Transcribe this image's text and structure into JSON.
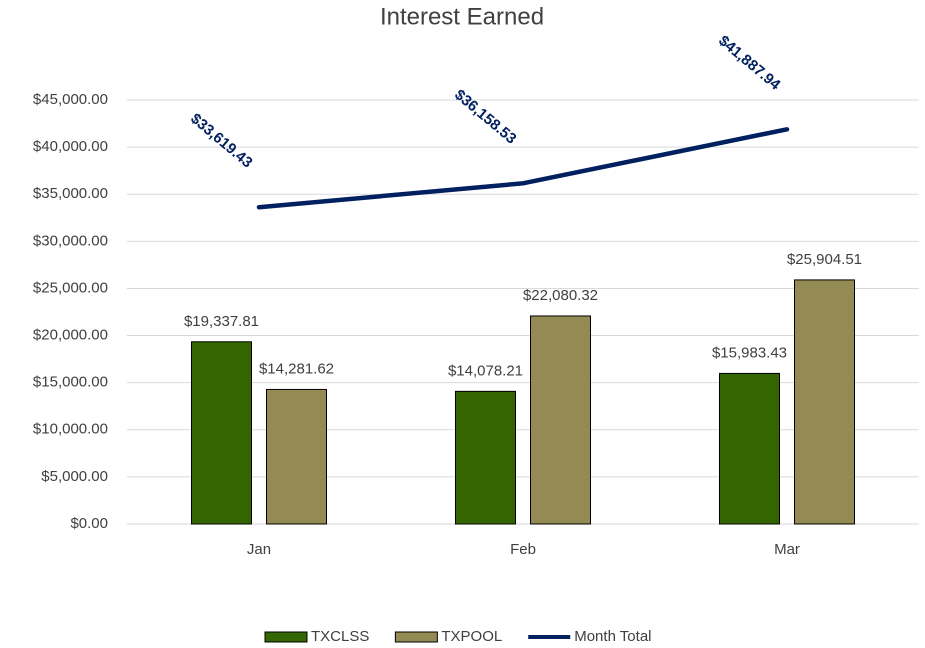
{
  "chart_data": {
    "type": "bar",
    "title": "Interest Earned",
    "categories": [
      "Jan",
      "Feb",
      "Mar"
    ],
    "series": [
      {
        "name": "TXCLSS",
        "type": "bar",
        "color": "#336600",
        "values": [
          19337.81,
          14078.21,
          15983.43
        ],
        "value_labels": [
          "$19,337.81",
          "$14,078.21",
          "$15,983.43"
        ]
      },
      {
        "name": "TXPOOL",
        "type": "bar",
        "color": "#948a54",
        "values": [
          14281.62,
          22080.32,
          25904.51
        ],
        "value_labels": [
          "$14,281.62",
          "$22,080.32",
          "$25,904.51"
        ]
      },
      {
        "name": "Month Total",
        "type": "line",
        "color": "#002060",
        "values": [
          33619.43,
          36158.53,
          41887.94
        ],
        "value_labels": [
          "$33,619.43",
          "$36,158.53",
          "$41,887.94"
        ]
      }
    ],
    "ylim": [
      0,
      45000
    ],
    "yticks": [
      {
        "value": 0,
        "label": "$0.00"
      },
      {
        "value": 5000,
        "label": "$5,000.00"
      },
      {
        "value": 10000,
        "label": "$10,000.00"
      },
      {
        "value": 15000,
        "label": "$15,000.00"
      },
      {
        "value": 20000,
        "label": "$20,000.00"
      },
      {
        "value": 25000,
        "label": "$25,000.00"
      },
      {
        "value": 30000,
        "label": "$30,000.00"
      },
      {
        "value": 35000,
        "label": "$35,000.00"
      },
      {
        "value": 40000,
        "label": "$40,000.00"
      },
      {
        "value": 45000,
        "label": "$45,000.00"
      }
    ],
    "grid": true,
    "legend": "bottom"
  }
}
